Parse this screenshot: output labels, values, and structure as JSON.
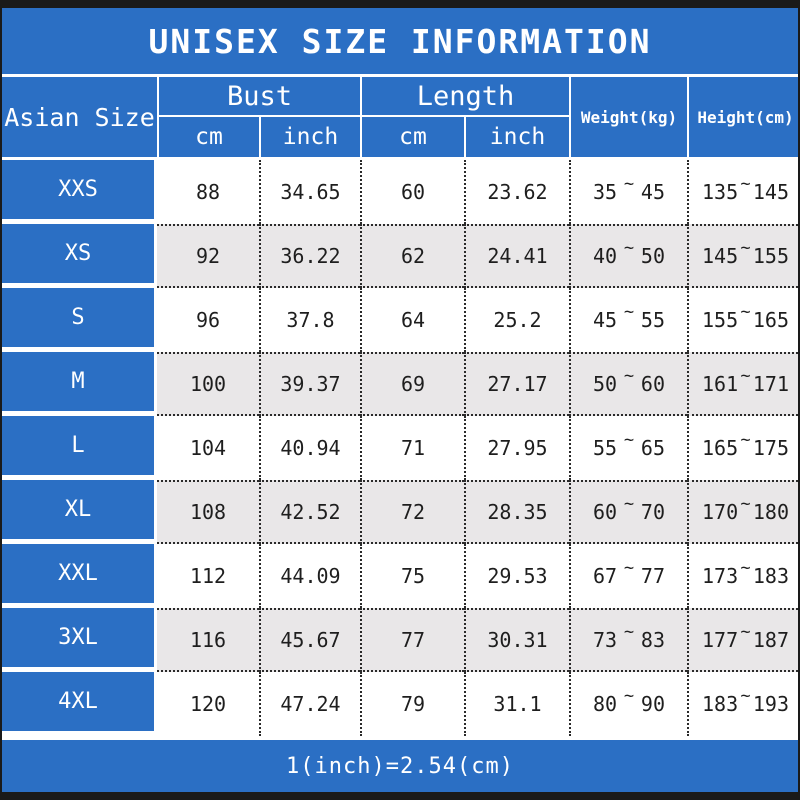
{
  "title": "UNISEX SIZE INFORMATION",
  "chart_data": {
    "type": "table",
    "title": "UNISEX SIZE INFORMATION",
    "header": {
      "size": "Asian Size",
      "bust_group": "Bust",
      "length_group": "Length",
      "weight": "Weight(kg)",
      "height": "Height(cm)",
      "sub_cm": "cm",
      "sub_inch": "inch"
    },
    "tilde": "~",
    "rows": [
      {
        "size": "XXS",
        "bust_cm": "88",
        "bust_inch": "34.65",
        "length_cm": "60",
        "length_inch": "23.62",
        "weight_min": "35",
        "weight_max": "45",
        "height_min": "135",
        "height_max": "145"
      },
      {
        "size": "XS",
        "bust_cm": "92",
        "bust_inch": "36.22",
        "length_cm": "62",
        "length_inch": "24.41",
        "weight_min": "40",
        "weight_max": "50",
        "height_min": "145",
        "height_max": "155"
      },
      {
        "size": "S",
        "bust_cm": "96",
        "bust_inch": "37.8",
        "length_cm": "64",
        "length_inch": "25.2",
        "weight_min": "45",
        "weight_max": "55",
        "height_min": "155",
        "height_max": "165"
      },
      {
        "size": "M",
        "bust_cm": "100",
        "bust_inch": "39.37",
        "length_cm": "69",
        "length_inch": "27.17",
        "weight_min": "50",
        "weight_max": "60",
        "height_min": "161",
        "height_max": "171"
      },
      {
        "size": "L",
        "bust_cm": "104",
        "bust_inch": "40.94",
        "length_cm": "71",
        "length_inch": "27.95",
        "weight_min": "55",
        "weight_max": "65",
        "height_min": "165",
        "height_max": "175"
      },
      {
        "size": "XL",
        "bust_cm": "108",
        "bust_inch": "42.52",
        "length_cm": "72",
        "length_inch": "28.35",
        "weight_min": "60",
        "weight_max": "70",
        "height_min": "170",
        "height_max": "180"
      },
      {
        "size": "XXL",
        "bust_cm": "112",
        "bust_inch": "44.09",
        "length_cm": "75",
        "length_inch": "29.53",
        "weight_min": "67",
        "weight_max": "77",
        "height_min": "173",
        "height_max": "183"
      },
      {
        "size": "3XL",
        "bust_cm": "116",
        "bust_inch": "45.67",
        "length_cm": "77",
        "length_inch": "30.31",
        "weight_min": "73",
        "weight_max": "83",
        "height_min": "177",
        "height_max": "187"
      },
      {
        "size": "4XL",
        "bust_cm": "120",
        "bust_inch": "47.24",
        "length_cm": "79",
        "length_inch": "31.1",
        "weight_min": "80",
        "weight_max": "90",
        "height_min": "183",
        "height_max": "193"
      }
    ],
    "footer_note": "1(inch)=2.54(cm)"
  },
  "colors": {
    "accent_blue": "#2b6fc4",
    "alt_row_gray": "#e9e7e8",
    "bar_black": "#1a1a1a",
    "text_dark": "#1e1e1e",
    "text_white": "#ffffff"
  }
}
